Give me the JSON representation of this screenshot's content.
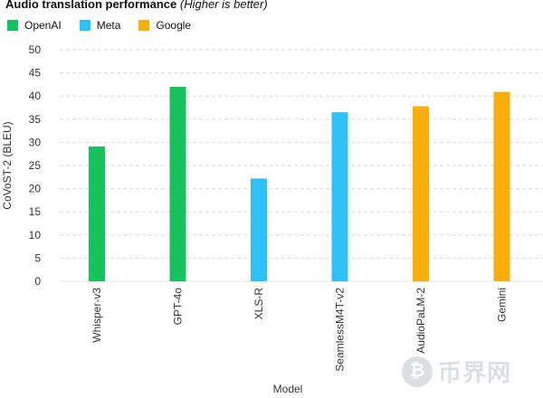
{
  "chart_data": {
    "type": "bar",
    "title": "Audio translation performance",
    "subtitle": "(Higher is better)",
    "xlabel": "Model",
    "ylabel": "CoVoST-2 (BLEU)",
    "ylim": [
      0,
      50
    ],
    "yticks": [
      0,
      5,
      10,
      15,
      20,
      25,
      30,
      35,
      40,
      45,
      50
    ],
    "grid": "horizontal dashed",
    "legend_position": "top-left",
    "legend": [
      {
        "name": "OpenAI",
        "color": "#17c15b"
      },
      {
        "name": "Meta",
        "color": "#2ec1f5"
      },
      {
        "name": "Google",
        "color": "#f9ad0e"
      }
    ],
    "categories": [
      "Whisper-v3",
      "GPT-4o",
      "XLS-R",
      "SeamlessM4T-v2",
      "AudioPaLM-2",
      "Gemini"
    ],
    "values": [
      29.1,
      42.0,
      22.2,
      36.5,
      37.8,
      40.9
    ],
    "groups": [
      "OpenAI",
      "OpenAI",
      "Meta",
      "Meta",
      "Google",
      "Google"
    ]
  },
  "watermark": {
    "text": "币界网",
    "icon": "bitcoin-icon"
  }
}
